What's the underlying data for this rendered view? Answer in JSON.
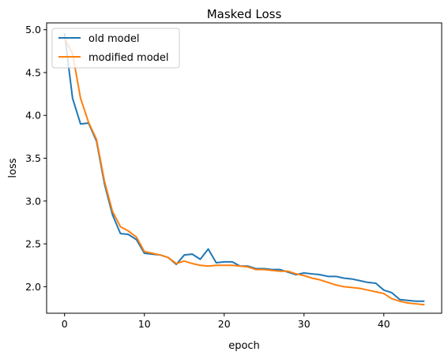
{
  "chart_data": {
    "type": "line",
    "title": "Masked Loss",
    "xlabel": "epoch",
    "ylabel": "loss",
    "xlim": [
      -2.25,
      47.25
    ],
    "ylim": [
      1.69,
      5.08
    ],
    "xticks": [
      0,
      10,
      20,
      30,
      40
    ],
    "yticks": [
      2.0,
      2.5,
      3.0,
      3.5,
      4.0,
      4.5,
      5.0
    ],
    "xtick_labels": [
      "0",
      "10",
      "20",
      "30",
      "40"
    ],
    "ytick_labels": [
      "2.0",
      "2.5",
      "3.0",
      "3.5",
      "4.0",
      "4.5",
      "5.0"
    ],
    "legend_position": "top-left",
    "grid": false,
    "series": [
      {
        "name": "old model",
        "color": "#1f77b4",
        "x": [
          0,
          1,
          2,
          3,
          4,
          5,
          6,
          7,
          8,
          9,
          10,
          11,
          12,
          13,
          14,
          15,
          16,
          17,
          18,
          19,
          20,
          21,
          22,
          23,
          24,
          25,
          26,
          27,
          28,
          29,
          30,
          31,
          32,
          33,
          34,
          35,
          36,
          37,
          38,
          39,
          40,
          41,
          42,
          43,
          44,
          45
        ],
        "values": [
          4.95,
          4.2,
          3.9,
          3.91,
          3.7,
          3.2,
          2.84,
          2.62,
          2.61,
          2.55,
          2.39,
          2.38,
          2.37,
          2.34,
          2.26,
          2.37,
          2.38,
          2.32,
          2.44,
          2.28,
          2.29,
          2.29,
          2.24,
          2.24,
          2.21,
          2.21,
          2.2,
          2.2,
          2.17,
          2.14,
          2.16,
          2.15,
          2.14,
          2.12,
          2.12,
          2.1,
          2.09,
          2.07,
          2.05,
          2.04,
          1.96,
          1.93,
          1.85,
          1.84,
          1.83,
          1.83
        ]
      },
      {
        "name": "modified model",
        "color": "#ff7f0e",
        "x": [
          0,
          1,
          2,
          3,
          4,
          5,
          6,
          7,
          8,
          9,
          10,
          11,
          12,
          13,
          14,
          15,
          16,
          17,
          18,
          19,
          20,
          21,
          22,
          23,
          24,
          25,
          26,
          27,
          28,
          29,
          30,
          31,
          32,
          33,
          34,
          35,
          36,
          37,
          38,
          39,
          40,
          41,
          42,
          43,
          44,
          45
        ],
        "values": [
          4.9,
          4.72,
          4.2,
          3.92,
          3.72,
          3.23,
          2.88,
          2.7,
          2.65,
          2.58,
          2.41,
          2.39,
          2.37,
          2.34,
          2.27,
          2.3,
          2.27,
          2.25,
          2.24,
          2.25,
          2.25,
          2.25,
          2.24,
          2.23,
          2.2,
          2.2,
          2.19,
          2.18,
          2.18,
          2.15,
          2.13,
          2.1,
          2.08,
          2.05,
          2.02,
          2.0,
          1.99,
          1.98,
          1.96,
          1.94,
          1.92,
          1.86,
          1.83,
          1.81,
          1.8,
          1.79
        ]
      }
    ]
  }
}
